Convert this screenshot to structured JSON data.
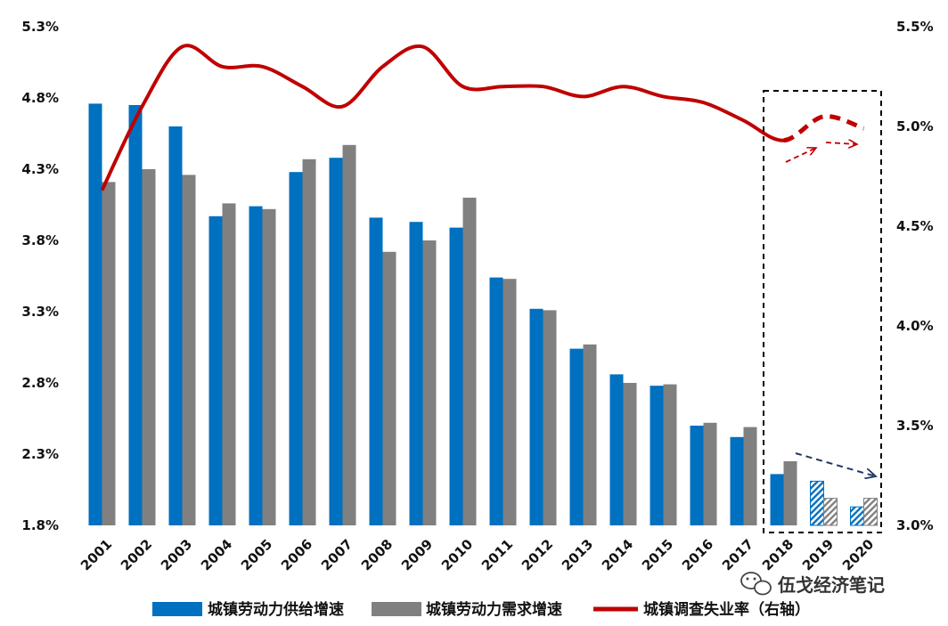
{
  "chart_data": {
    "type": "bar",
    "categories": [
      "2001",
      "2002",
      "2003",
      "2004",
      "2005",
      "2006",
      "2007",
      "2008",
      "2009",
      "2010",
      "2011",
      "2012",
      "2013",
      "2014",
      "2015",
      "2016",
      "2017",
      "2018",
      "2019",
      "2020"
    ],
    "series": [
      {
        "name": "城镇劳动力供给增速",
        "kind": "bar",
        "axis": "left",
        "color": "#0070C0",
        "values": [
          4.76,
          4.75,
          4.6,
          3.97,
          4.04,
          4.28,
          4.38,
          3.96,
          3.93,
          3.89,
          3.54,
          3.32,
          3.04,
          2.86,
          2.78,
          2.5,
          2.42,
          2.16,
          2.11,
          1.93
        ],
        "forecast_from": "2019"
      },
      {
        "name": "城镇劳动力需求增速",
        "kind": "bar",
        "axis": "left",
        "color": "#808080",
        "values": [
          4.21,
          4.3,
          4.26,
          4.06,
          4.02,
          4.37,
          4.47,
          3.72,
          3.8,
          4.1,
          3.53,
          3.31,
          3.07,
          2.8,
          2.79,
          2.52,
          2.49,
          2.25,
          1.99,
          1.99
        ],
        "forecast_from": "2019"
      },
      {
        "name": "城镇调查失业率（右轴）",
        "kind": "line",
        "axis": "right",
        "color": "#C00000",
        "values": [
          4.68,
          5.1,
          5.4,
          5.3,
          5.3,
          5.2,
          5.1,
          5.3,
          5.4,
          5.2,
          5.2,
          5.2,
          5.15,
          5.2,
          5.15,
          5.12,
          5.03,
          4.93,
          5.05,
          4.99
        ],
        "forecast_from": "2018"
      }
    ],
    "y_left": {
      "min": 1.8,
      "max": 5.3,
      "ticks": [
        "1.8%",
        "2.3%",
        "2.8%",
        "3.3%",
        "3.8%",
        "4.3%",
        "4.8%",
        "5.3%"
      ]
    },
    "y_right": {
      "min": 3.0,
      "max": 5.5,
      "ticks": [
        "3.0%",
        "3.5%",
        "4.0%",
        "4.5%",
        "5.0%",
        "5.5%"
      ]
    },
    "grid": false,
    "legend_position": "bottom",
    "forecast_box": {
      "categories": [
        "2018",
        "2019",
        "2020"
      ],
      "style": "dashed"
    }
  },
  "watermark": {
    "text": "伍戈经济笔记",
    "icon": "wechat-icon"
  }
}
